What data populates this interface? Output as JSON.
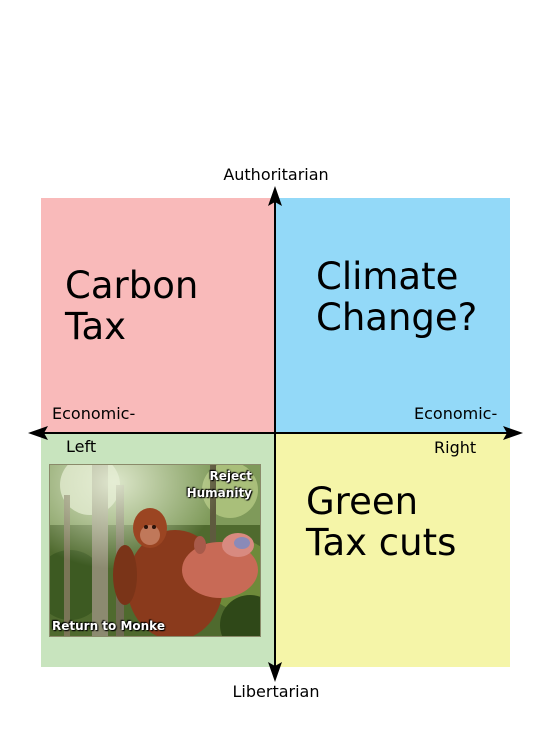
{
  "axes": {
    "top": "Authoritarian",
    "bottom": "Libertarian",
    "left_line1": "Economic-",
    "left_line2": "Left",
    "right_line1": "Economic-",
    "right_line2": "Right"
  },
  "quadrants": {
    "top_left": {
      "text": "Carbon\nTax",
      "color": "#f9baba"
    },
    "top_right": {
      "text": "Climate\nChange?",
      "color": "#93d9f8"
    },
    "bottom_left": {
      "color": "#c8e4be"
    },
    "bottom_right": {
      "text": "Green\nTax cuts",
      "color": "#f5f5a8"
    }
  },
  "meme_image": {
    "icon": "orangutan-photo",
    "caption_top_line1": "Reject",
    "caption_top_line2": "Humanity",
    "caption_bottom": "Return to Monke"
  }
}
